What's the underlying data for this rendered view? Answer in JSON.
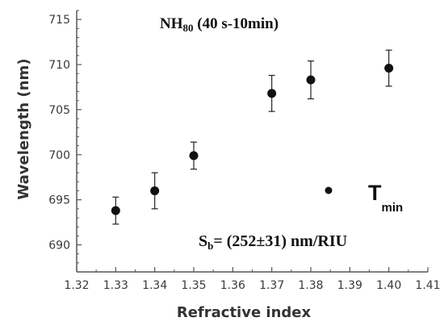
{
  "chart_data": {
    "type": "scatter",
    "xlabel": "Refractive index",
    "ylabel": "Wavelength (nm)",
    "xlim": [
      1.32,
      1.41
    ],
    "ylim": [
      687,
      716
    ],
    "xticks": [
      "1.32",
      "1.33",
      "1.34",
      "1.35",
      "1.36",
      "1.37",
      "1.38",
      "1.39",
      "1.40",
      "1.41"
    ],
    "yticks": [
      "690",
      "695",
      "700",
      "705",
      "710",
      "715"
    ],
    "grid": false,
    "points": [
      {
        "x": 1.33,
        "y": 693.8,
        "err": 1.5
      },
      {
        "x": 1.34,
        "y": 696.0,
        "err": 2.0
      },
      {
        "x": 1.35,
        "y": 699.9,
        "err": 1.5
      },
      {
        "x": 1.37,
        "y": 706.8,
        "err": 2.0
      },
      {
        "x": 1.38,
        "y": 708.3,
        "err": 2.1
      },
      {
        "x": 1.4,
        "y": 709.6,
        "err": 2.0
      }
    ],
    "title": {
      "main": "NH",
      "sub": "80",
      "rest": " (40 s-10min)"
    },
    "legend": {
      "label_main": "T",
      "label_sub": "min",
      "placement": "right"
    },
    "sensitivity": {
      "main": "S",
      "sub": "b",
      "rest": "= (252±31) nm/RIU"
    },
    "marker_color": "#111111",
    "axis_color": "#555555"
  }
}
